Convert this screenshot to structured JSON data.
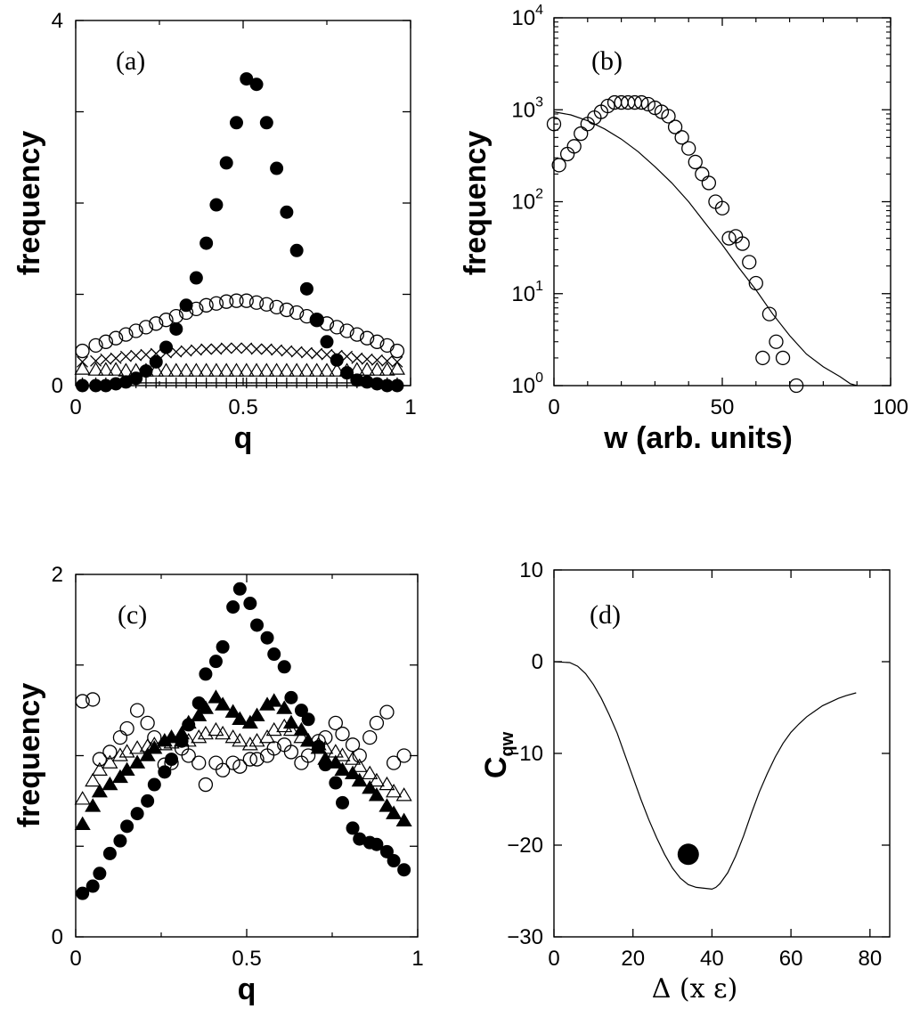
{
  "chart_data": [
    {
      "panel": "a",
      "type": "scatter",
      "tag": "(a)",
      "xlabel": "q",
      "ylabel": "frequency",
      "xlim": [
        0,
        1
      ],
      "ylim": [
        0,
        4
      ],
      "xticks": [
        "0",
        "0.5",
        "1"
      ],
      "yticks": [
        "0",
        "4"
      ],
      "series": [
        {
          "marker": "filled-circle",
          "x": [
            0.02,
            0.06,
            0.09,
            0.12,
            0.15,
            0.18,
            0.21,
            0.24,
            0.27,
            0.3,
            0.33,
            0.36,
            0.39,
            0.42,
            0.45,
            0.48,
            0.51,
            0.54,
            0.57,
            0.6,
            0.63,
            0.66,
            0.69,
            0.72,
            0.75,
            0.78,
            0.81,
            0.84,
            0.87,
            0.9,
            0.93,
            0.96
          ],
          "y": [
            0.0,
            0.0,
            0.0,
            0.02,
            0.04,
            0.08,
            0.16,
            0.26,
            0.42,
            0.62,
            0.88,
            1.18,
            1.56,
            1.98,
            2.44,
            2.88,
            3.36,
            3.3,
            2.88,
            2.38,
            1.9,
            1.48,
            1.06,
            0.72,
            0.48,
            0.28,
            0.14,
            0.06,
            0.04,
            0.02,
            0.0,
            0.0
          ]
        },
        {
          "marker": "open-circle",
          "x": [
            0.02,
            0.06,
            0.09,
            0.12,
            0.15,
            0.18,
            0.21,
            0.24,
            0.27,
            0.3,
            0.33,
            0.36,
            0.39,
            0.42,
            0.45,
            0.48,
            0.51,
            0.54,
            0.57,
            0.6,
            0.63,
            0.66,
            0.69,
            0.72,
            0.75,
            0.78,
            0.81,
            0.84,
            0.87,
            0.9,
            0.93,
            0.96
          ],
          "y": [
            0.38,
            0.44,
            0.48,
            0.52,
            0.56,
            0.6,
            0.64,
            0.68,
            0.72,
            0.76,
            0.8,
            0.84,
            0.88,
            0.9,
            0.92,
            0.93,
            0.93,
            0.91,
            0.89,
            0.86,
            0.83,
            0.8,
            0.76,
            0.72,
            0.68,
            0.64,
            0.6,
            0.56,
            0.52,
            0.48,
            0.44,
            0.38
          ]
        },
        {
          "marker": "cross",
          "x": [
            0.02,
            0.06,
            0.09,
            0.12,
            0.15,
            0.18,
            0.21,
            0.24,
            0.27,
            0.3,
            0.33,
            0.36,
            0.39,
            0.42,
            0.45,
            0.48,
            0.51,
            0.54,
            0.57,
            0.6,
            0.63,
            0.66,
            0.69,
            0.72,
            0.75,
            0.78,
            0.81,
            0.84,
            0.87,
            0.9,
            0.93,
            0.96
          ],
          "y": [
            0.26,
            0.27,
            0.29,
            0.3,
            0.32,
            0.33,
            0.34,
            0.35,
            0.36,
            0.37,
            0.38,
            0.39,
            0.4,
            0.4,
            0.41,
            0.41,
            0.41,
            0.4,
            0.4,
            0.39,
            0.38,
            0.37,
            0.36,
            0.35,
            0.34,
            0.33,
            0.32,
            0.3,
            0.29,
            0.28,
            0.27,
            0.26
          ]
        },
        {
          "marker": "open-triangle",
          "x": [
            0.02,
            0.06,
            0.09,
            0.12,
            0.15,
            0.18,
            0.21,
            0.24,
            0.27,
            0.3,
            0.33,
            0.36,
            0.39,
            0.42,
            0.45,
            0.48,
            0.51,
            0.54,
            0.57,
            0.6,
            0.63,
            0.66,
            0.69,
            0.72,
            0.75,
            0.78,
            0.81,
            0.84,
            0.87,
            0.9,
            0.93,
            0.96
          ],
          "y": [
            0.18,
            0.17,
            0.17,
            0.17,
            0.16,
            0.16,
            0.16,
            0.16,
            0.16,
            0.16,
            0.16,
            0.16,
            0.16,
            0.16,
            0.16,
            0.16,
            0.16,
            0.16,
            0.16,
            0.16,
            0.16,
            0.16,
            0.16,
            0.16,
            0.16,
            0.16,
            0.16,
            0.17,
            0.17,
            0.17,
            0.17,
            0.18
          ]
        },
        {
          "marker": "plus",
          "x": [
            0.02,
            0.06,
            0.09,
            0.12,
            0.15,
            0.18,
            0.21,
            0.24,
            0.27,
            0.3,
            0.33,
            0.36,
            0.39,
            0.42,
            0.45,
            0.48,
            0.51,
            0.54,
            0.57,
            0.6,
            0.63,
            0.66,
            0.69,
            0.72,
            0.75,
            0.78,
            0.81,
            0.84,
            0.87,
            0.9,
            0.93,
            0.96
          ],
          "y": [
            0.03,
            0.03,
            0.03,
            0.03,
            0.03,
            0.03,
            0.03,
            0.03,
            0.03,
            0.03,
            0.03,
            0.03,
            0.03,
            0.03,
            0.03,
            0.03,
            0.03,
            0.03,
            0.03,
            0.03,
            0.03,
            0.03,
            0.03,
            0.03,
            0.03,
            0.03,
            0.03,
            0.03,
            0.03,
            0.03,
            0.03,
            0.03
          ]
        }
      ]
    },
    {
      "panel": "b",
      "type": "scatter",
      "tag": "(b)",
      "xlabel": "w (arb. units)",
      "ylabel": "frequency",
      "xlim": [
        0,
        100
      ],
      "ylim": [
        1,
        10000
      ],
      "yscale": "log",
      "xticks": [
        "0",
        "50",
        "100"
      ],
      "yticks": [
        {
          "base": "10",
          "exp": "0"
        },
        {
          "base": "10",
          "exp": "1"
        },
        {
          "base": "10",
          "exp": "2"
        },
        {
          "base": "10",
          "exp": "3"
        },
        {
          "base": "10",
          "exp": "4"
        }
      ],
      "series": [
        {
          "marker": "open-circle",
          "x": [
            0,
            1.5,
            4,
            6,
            8,
            10,
            12,
            14,
            16,
            18,
            20,
            22,
            24,
            26,
            28,
            30,
            32,
            34,
            36,
            38,
            40,
            42,
            44,
            46,
            48,
            50,
            52,
            54,
            56,
            58,
            60,
            62,
            64,
            66,
            68,
            72
          ],
          "y": [
            700,
            250,
            330,
            400,
            550,
            700,
            820,
            950,
            1100,
            1200,
            1200,
            1200,
            1200,
            1200,
            1150,
            1050,
            950,
            850,
            650,
            500,
            380,
            270,
            200,
            160,
            100,
            85,
            40,
            42,
            35,
            22,
            13,
            2,
            6,
            3,
            2,
            1
          ]
        },
        {
          "marker": "line",
          "x": [
            0,
            5,
            10,
            15,
            20,
            25,
            30,
            35,
            40,
            45,
            50,
            55,
            60,
            65,
            70,
            75,
            80,
            85,
            88,
            90
          ],
          "y": [
            950,
            880,
            760,
            620,
            480,
            350,
            240,
            160,
            100,
            58,
            34,
            19,
            11,
            6,
            3.5,
            2.2,
            1.6,
            1.25,
            1.05,
            0.9
          ]
        }
      ]
    },
    {
      "panel": "c",
      "type": "scatter",
      "tag": "(c)",
      "xlabel": "q",
      "ylabel": "frequency",
      "xlim": [
        0,
        1
      ],
      "ylim": [
        0,
        2
      ],
      "xticks": [
        "0",
        "0.5",
        "1"
      ],
      "yticks": [
        "0",
        "2"
      ],
      "series": [
        {
          "marker": "filled-circle",
          "x": [
            0.02,
            0.05,
            0.07,
            0.1,
            0.13,
            0.15,
            0.18,
            0.21,
            0.23,
            0.26,
            0.28,
            0.31,
            0.33,
            0.36,
            0.38,
            0.41,
            0.43,
            0.46,
            0.48,
            0.51,
            0.53,
            0.56,
            0.58,
            0.61,
            0.63,
            0.66,
            0.68,
            0.71,
            0.73,
            0.76,
            0.78,
            0.81,
            0.83,
            0.86,
            0.88,
            0.91,
            0.93,
            0.96
          ],
          "y": [
            0.24,
            0.28,
            0.35,
            0.46,
            0.53,
            0.61,
            0.68,
            0.75,
            0.84,
            0.91,
            0.98,
            1.08,
            1.17,
            1.29,
            1.45,
            1.52,
            1.6,
            1.82,
            1.92,
            1.84,
            1.72,
            1.65,
            1.56,
            1.49,
            1.32,
            1.25,
            1.2,
            1.05,
            0.95,
            0.85,
            0.74,
            0.6,
            0.54,
            0.52,
            0.51,
            0.47,
            0.42,
            0.37
          ]
        },
        {
          "marker": "filled-triangle",
          "x": [
            0.02,
            0.05,
            0.07,
            0.1,
            0.13,
            0.15,
            0.18,
            0.21,
            0.23,
            0.26,
            0.28,
            0.31,
            0.33,
            0.36,
            0.38,
            0.41,
            0.43,
            0.46,
            0.48,
            0.51,
            0.53,
            0.56,
            0.58,
            0.61,
            0.63,
            0.66,
            0.68,
            0.71,
            0.73,
            0.76,
            0.78,
            0.81,
            0.83,
            0.86,
            0.88,
            0.91,
            0.93,
            0.96
          ],
          "y": [
            0.62,
            0.72,
            0.8,
            0.84,
            0.88,
            0.92,
            0.96,
            1.0,
            1.04,
            1.08,
            1.1,
            1.12,
            1.18,
            1.22,
            1.26,
            1.32,
            1.28,
            1.24,
            1.2,
            1.18,
            1.22,
            1.28,
            1.3,
            1.26,
            1.18,
            1.14,
            1.08,
            1.04,
            0.98,
            0.96,
            0.92,
            0.9,
            0.86,
            0.82,
            0.78,
            0.72,
            0.68,
            0.64
          ]
        },
        {
          "marker": "open-triangle",
          "x": [
            0.02,
            0.05,
            0.07,
            0.1,
            0.13,
            0.15,
            0.18,
            0.21,
            0.23,
            0.26,
            0.28,
            0.31,
            0.33,
            0.36,
            0.38,
            0.41,
            0.43,
            0.46,
            0.48,
            0.51,
            0.53,
            0.56,
            0.58,
            0.61,
            0.63,
            0.66,
            0.68,
            0.71,
            0.73,
            0.76,
            0.78,
            0.81,
            0.83,
            0.86,
            0.88,
            0.91,
            0.93,
            0.96
          ],
          "y": [
            0.76,
            0.86,
            0.92,
            0.96,
            1.0,
            1.02,
            1.04,
            1.05,
            1.06,
            1.06,
            1.07,
            1.08,
            1.08,
            1.1,
            1.12,
            1.14,
            1.12,
            1.1,
            1.08,
            1.06,
            1.08,
            1.1,
            1.14,
            1.16,
            1.14,
            1.1,
            1.08,
            1.06,
            1.04,
            1.02,
            1.0,
            0.98,
            0.94,
            0.9,
            0.86,
            0.84,
            0.8,
            0.78
          ]
        },
        {
          "marker": "open-circle",
          "x": [
            0.02,
            0.05,
            0.07,
            0.1,
            0.13,
            0.15,
            0.18,
            0.21,
            0.23,
            0.26,
            0.28,
            0.31,
            0.33,
            0.36,
            0.38,
            0.41,
            0.43,
            0.46,
            0.48,
            0.51,
            0.53,
            0.56,
            0.58,
            0.61,
            0.63,
            0.66,
            0.68,
            0.71,
            0.73,
            0.76,
            0.78,
            0.81,
            0.83,
            0.86,
            0.88,
            0.91,
            0.93,
            0.96
          ],
          "y": [
            1.3,
            1.31,
            0.98,
            1.02,
            1.1,
            1.15,
            1.25,
            1.18,
            1.1,
            0.95,
            0.96,
            1.04,
            1.0,
            0.96,
            0.84,
            0.96,
            0.92,
            0.96,
            0.94,
            0.98,
            0.98,
            1.0,
            1.04,
            1.06,
            1.02,
            0.96,
            1.0,
            1.08,
            1.1,
            1.18,
            1.12,
            1.06,
            1.0,
            1.1,
            1.18,
            1.24,
            0.96,
            1.0
          ]
        }
      ]
    },
    {
      "panel": "d",
      "type": "line",
      "tag": "(d)",
      "xlabel": "Δ (x ε)",
      "ylabel_main": "C",
      "ylabel_sub": "qw",
      "xlim": [
        0,
        85
      ],
      "ylim": [
        -30,
        10
      ],
      "xticks": [
        "0",
        "20",
        "40",
        "60",
        "80"
      ],
      "yticks": [
        "−30",
        "−20",
        "−10",
        "0",
        "10"
      ],
      "series": [
        {
          "marker": "line",
          "x": [
            0,
            4,
            6,
            8,
            10,
            12,
            14,
            16,
            18,
            20,
            22,
            24,
            26,
            28,
            30,
            32,
            34,
            36,
            38,
            40,
            41,
            42,
            44,
            46,
            48,
            50,
            52,
            54,
            56,
            58,
            60,
            62,
            64,
            66,
            68,
            70,
            72,
            74,
            76.5
          ],
          "y": [
            0,
            -0.1,
            -0.5,
            -1.3,
            -2.5,
            -4.0,
            -5.8,
            -7.8,
            -10.2,
            -12.6,
            -15.0,
            -17.2,
            -19.2,
            -21.0,
            -22.5,
            -23.6,
            -24.3,
            -24.6,
            -24.7,
            -24.8,
            -24.6,
            -24.2,
            -23.0,
            -21.2,
            -19.0,
            -16.5,
            -14.2,
            -12.2,
            -10.4,
            -8.9,
            -7.7,
            -6.8,
            -6.0,
            -5.4,
            -4.8,
            -4.4,
            -4.0,
            -3.7,
            -3.4
          ]
        },
        {
          "marker": "big-filled-circle",
          "x": [
            34
          ],
          "y": [
            -21
          ]
        }
      ]
    }
  ]
}
